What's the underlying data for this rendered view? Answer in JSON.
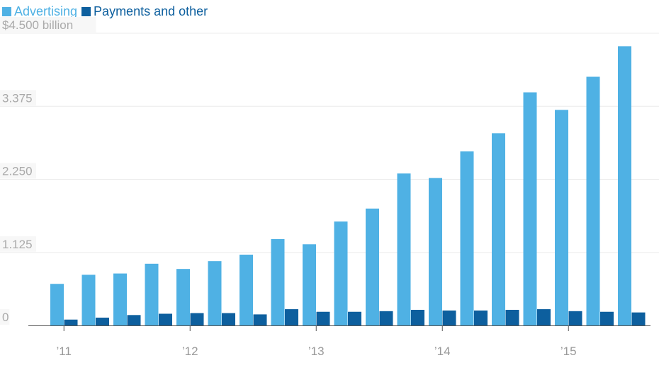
{
  "chart_data": {
    "type": "bar",
    "categories": [
      "Q1 2011",
      "Q2 2011",
      "Q3 2011",
      "Q4 2011",
      "Q1 2012",
      "Q2 2012",
      "Q3 2012",
      "Q4 2012",
      "Q1 2013",
      "Q2 2013",
      "Q3 2013",
      "Q4 2013",
      "Q1 2014",
      "Q2 2014",
      "Q3 2014",
      "Q4 2014",
      "Q1 2015",
      "Q2 2015",
      "Q3 2015",
      "Q4 2015"
    ],
    "x_tick_labels": [
      {
        "label": "’11",
        "category_index": 0
      },
      {
        "label": "’12",
        "category_index": 4
      },
      {
        "label": "’13",
        "category_index": 8
      },
      {
        "label": "’14",
        "category_index": 12
      },
      {
        "label": "’15",
        "category_index": 16
      }
    ],
    "series": [
      {
        "name": "Advertising",
        "color": "#4fb1e4",
        "values": [
          0.64,
          0.78,
          0.8,
          0.95,
          0.87,
          0.99,
          1.09,
          1.33,
          1.25,
          1.6,
          1.8,
          2.34,
          2.27,
          2.68,
          2.96,
          3.59,
          3.32,
          3.83,
          4.3,
          null
        ]
      },
      {
        "name": "Payments and other",
        "color": "#0d5f9e",
        "values": [
          0.09,
          0.12,
          0.16,
          0.18,
          0.19,
          0.19,
          0.17,
          0.25,
          0.21,
          0.21,
          0.22,
          0.24,
          0.23,
          0.23,
          0.24,
          0.25,
          0.22,
          0.21,
          0.2,
          null
        ]
      }
    ],
    "y_ticks": [
      {
        "value": 0,
        "label": "0"
      },
      {
        "value": 1.125,
        "label": "1.125"
      },
      {
        "value": 2.25,
        "label": "2.250"
      },
      {
        "value": 3.375,
        "label": "3.375"
      },
      {
        "value": 4.5,
        "label": "$4.500 billion"
      }
    ],
    "ylim": [
      0,
      4.5
    ],
    "legend_position": "top-left",
    "grid": true
  }
}
